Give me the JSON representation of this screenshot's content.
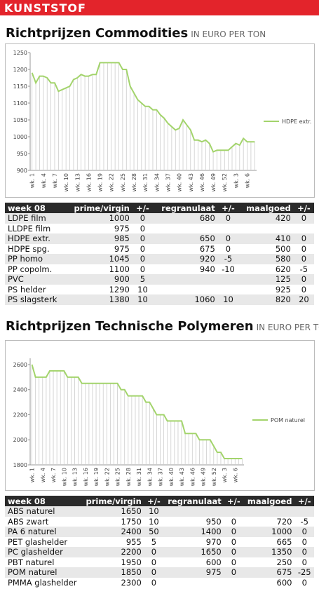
{
  "header": {
    "title": "KUNSTSTOF"
  },
  "sections": [
    {
      "title": "Richtprijzen Commodities",
      "unit": "IN EURO PER TON"
    },
    {
      "title": "Richtprijzen Technische Polymeren",
      "unit": "IN EURO PER TON"
    }
  ],
  "chart_data": [
    {
      "type": "line",
      "drop_lines": true,
      "categories": [
        "wk. 1",
        null,
        null,
        "wk. 4",
        null,
        null,
        "wk. 7",
        null,
        null,
        "wk. 10",
        null,
        null,
        "wk. 13",
        null,
        null,
        "wk. 16",
        null,
        null,
        "wk. 19",
        null,
        null,
        "wk. 22",
        null,
        null,
        "wk. 25",
        null,
        null,
        "wk. 28",
        null,
        null,
        "wk. 31",
        null,
        null,
        "wk. 34",
        null,
        null,
        "wk. 37",
        null,
        null,
        "wk. 40",
        null,
        null,
        "wk. 43",
        null,
        null,
        "wk. 46",
        null,
        null,
        "wk. 49",
        null,
        null,
        "wk. 52",
        null,
        null,
        "wk. 3",
        null,
        null,
        "wk. 6",
        null,
        null
      ],
      "series": [
        {
          "name": "HDPE extr.",
          "color": "#a3d46c",
          "values": [
            1190,
            1160,
            1180,
            1180,
            1175,
            1160,
            1160,
            1135,
            1140,
            1145,
            1150,
            1170,
            1175,
            1185,
            1180,
            1180,
            1185,
            1185,
            1220,
            1220,
            1220,
            1220,
            1220,
            1220,
            1200,
            1200,
            1150,
            1130,
            1110,
            1100,
            1090,
            1090,
            1080,
            1080,
            1065,
            1055,
            1040,
            1030,
            1020,
            1025,
            1050,
            1035,
            1020,
            990,
            990,
            985,
            990,
            980,
            955,
            960,
            960,
            960,
            960,
            970,
            980,
            975,
            995,
            985,
            985,
            985
          ]
        }
      ],
      "ylim": [
        900,
        1250
      ],
      "yticks": [
        900,
        950,
        1000,
        1050,
        1100,
        1150,
        1200,
        1250
      ]
    },
    {
      "type": "line",
      "drop_lines": true,
      "categories": [
        "wk. 1",
        null,
        null,
        "wk. 4",
        null,
        null,
        "wk. 7",
        null,
        null,
        "wk. 10",
        null,
        null,
        "wk. 13",
        null,
        null,
        "wk. 16",
        null,
        null,
        "wk. 19",
        null,
        null,
        "wk. 22",
        null,
        null,
        "wk. 25",
        null,
        null,
        "wk. 28",
        null,
        null,
        "wk. 31",
        null,
        null,
        "wk. 34",
        null,
        null,
        "wk. 37",
        null,
        null,
        "wk. 40",
        null,
        null,
        "wk. 43",
        null,
        null,
        "wk. 46",
        null,
        null,
        "wk. 49",
        null,
        null,
        "wk. 52",
        null,
        null,
        "wk. 3",
        null,
        null,
        "wk. 6",
        null,
        null
      ],
      "series": [
        {
          "name": "POM naturel",
          "color": "#a3d46c",
          "values": [
            2600,
            2500,
            2500,
            2500,
            2500,
            2550,
            2550,
            2550,
            2550,
            2550,
            2500,
            2500,
            2500,
            2500,
            2450,
            2450,
            2450,
            2450,
            2450,
            2450,
            2450,
            2450,
            2450,
            2450,
            2450,
            2400,
            2400,
            2350,
            2350,
            2350,
            2350,
            2350,
            2300,
            2300,
            2250,
            2200,
            2200,
            2200,
            2150,
            2150,
            2150,
            2150,
            2150,
            2050,
            2050,
            2050,
            2050,
            2000,
            2000,
            2000,
            2000,
            1950,
            1900,
            1900,
            1850,
            1850,
            1850,
            1850,
            1850,
            1850
          ]
        }
      ],
      "ylim": [
        1800,
        2650
      ],
      "yticks": [
        1800,
        2000,
        2200,
        2400,
        2600
      ]
    }
  ],
  "tables": [
    {
      "columns": [
        "week 08",
        "prime/virgin",
        "+/-",
        "regranulaat",
        "+/-",
        "maalgoed",
        "+/-"
      ],
      "rows": [
        [
          "LDPE film",
          1000,
          0,
          680,
          0,
          420,
          0
        ],
        [
          "LLDPE film",
          975,
          0,
          null,
          null,
          null,
          null
        ],
        [
          "HDPE extr.",
          985,
          0,
          650,
          0,
          410,
          0
        ],
        [
          "HDPE spg.",
          975,
          0,
          675,
          0,
          500,
          0
        ],
        [
          "PP homo",
          1045,
          0,
          920,
          -5,
          580,
          0
        ],
        [
          "PP copolm.",
          1100,
          0,
          940,
          -10,
          620,
          -5
        ],
        [
          "PVC",
          900,
          5,
          null,
          null,
          125,
          0
        ],
        [
          "PS helder",
          1290,
          10,
          null,
          null,
          925,
          0
        ],
        [
          "PS slagsterk",
          1380,
          10,
          1060,
          10,
          820,
          20
        ]
      ]
    },
    {
      "columns": [
        "week 08",
        "prime/virgin",
        "+/-",
        "regranulaat",
        "+/-",
        "maalgoed",
        "+/-"
      ],
      "rows": [
        [
          "ABS naturel",
          1650,
          10,
          null,
          null,
          null,
          null
        ],
        [
          "ABS zwart",
          1750,
          10,
          950,
          0,
          720,
          -5
        ],
        [
          "PA 6 naturel",
          2400,
          50,
          1400,
          0,
          1000,
          0
        ],
        [
          "PET glashelder",
          955,
          5,
          970,
          0,
          665,
          0
        ],
        [
          "PC glashelder",
          2200,
          0,
          1650,
          0,
          1350,
          0
        ],
        [
          "PBT naturel",
          1950,
          0,
          600,
          0,
          250,
          0
        ],
        [
          "POM naturel",
          1850,
          0,
          975,
          0,
          675,
          -25
        ],
        [
          "PMMA glashelder",
          2300,
          0,
          null,
          null,
          600,
          0
        ]
      ]
    }
  ]
}
